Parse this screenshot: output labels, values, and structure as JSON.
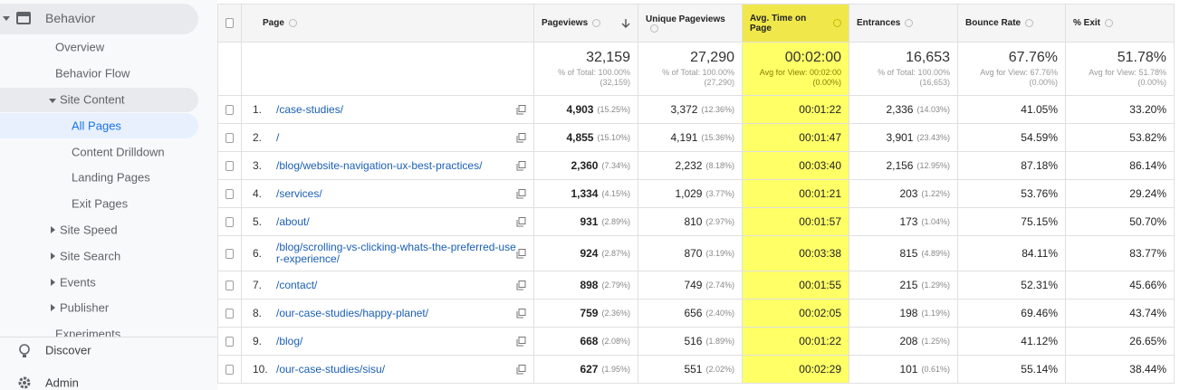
{
  "sidebar": {
    "items": [
      "Behavior",
      "Overview",
      "Behavior Flow",
      "Site Content",
      "All Pages",
      "Content Drilldown",
      "Landing Pages",
      "Exit Pages",
      "Site Speed",
      "Site Search",
      "Events",
      "Publisher",
      "Experiments"
    ],
    "discover": "Discover",
    "admin": "Admin"
  },
  "table": {
    "columns": [
      "Page",
      "Pageviews",
      "Unique Pageviews",
      "Avg. Time on Page",
      "Entrances",
      "Bounce Rate",
      "% Exit"
    ],
    "totals": [
      {
        "value": "32,159",
        "line1": "% of Total: 100.00%",
        "line2": "(32,159)"
      },
      {
        "value": "27,290",
        "line1": "% of Total: 100.00%",
        "line2": "(27,290)"
      },
      {
        "value": "00:02:00",
        "line1": "Avg for View: 00:02:00",
        "line2": "(0.00%)"
      },
      {
        "value": "16,653",
        "line1": "% of Total: 100.00%",
        "line2": "(16,653)"
      },
      {
        "value": "67.76%",
        "line1": "Avg for View: 67.76%",
        "line2": "(0.00%)"
      },
      {
        "value": "51.78%",
        "line1": "Avg for View: 51.78%",
        "line2": "(0.00%)"
      }
    ],
    "rows": [
      {
        "rank": "1.",
        "page": "/case-studies/",
        "cells": [
          [
            "4,903",
            "(15.25%)"
          ],
          [
            "3,372",
            "(12.36%)"
          ],
          [
            "00:01:22"
          ],
          [
            "2,336",
            "(14.03%)"
          ],
          [
            "41.05%"
          ],
          [
            "33.20%"
          ]
        ]
      },
      {
        "rank": "2.",
        "page": "/",
        "cells": [
          [
            "4,855",
            "(15.10%)"
          ],
          [
            "4,191",
            "(15.36%)"
          ],
          [
            "00:01:47"
          ],
          [
            "3,901",
            "(23.43%)"
          ],
          [
            "54.59%"
          ],
          [
            "53.82%"
          ]
        ]
      },
      {
        "rank": "3.",
        "page": "/blog/website-navigation-ux-best-practices/",
        "cells": [
          [
            "2,360",
            "(7.34%)"
          ],
          [
            "2,232",
            "(8.18%)"
          ],
          [
            "00:03:40"
          ],
          [
            "2,156",
            "(12.95%)"
          ],
          [
            "87.18%"
          ],
          [
            "86.14%"
          ]
        ]
      },
      {
        "rank": "4.",
        "page": "/services/",
        "cells": [
          [
            "1,334",
            "(4.15%)"
          ],
          [
            "1,029",
            "(3.77%)"
          ],
          [
            "00:01:21"
          ],
          [
            "203",
            "(1.22%)"
          ],
          [
            "53.76%"
          ],
          [
            "29.24%"
          ]
        ]
      },
      {
        "rank": "5.",
        "page": "/about/",
        "cells": [
          [
            "931",
            "(2.89%)"
          ],
          [
            "810",
            "(2.97%)"
          ],
          [
            "00:01:57"
          ],
          [
            "173",
            "(1.04%)"
          ],
          [
            "75.15%"
          ],
          [
            "50.70%"
          ]
        ]
      },
      {
        "rank": "6.",
        "page": "/blog/scrolling-vs-clicking-whats-the-preferred-user-experience/",
        "cells": [
          [
            "924",
            "(2.87%)"
          ],
          [
            "870",
            "(3.19%)"
          ],
          [
            "00:03:38"
          ],
          [
            "815",
            "(4.89%)"
          ],
          [
            "84.11%"
          ],
          [
            "83.77%"
          ]
        ]
      },
      {
        "rank": "7.",
        "page": "/contact/",
        "cells": [
          [
            "898",
            "(2.79%)"
          ],
          [
            "749",
            "(2.74%)"
          ],
          [
            "00:01:55"
          ],
          [
            "215",
            "(1.29%)"
          ],
          [
            "52.31%"
          ],
          [
            "45.66%"
          ]
        ]
      },
      {
        "rank": "8.",
        "page": "/our-case-studies/happy-planet/",
        "cells": [
          [
            "759",
            "(2.36%)"
          ],
          [
            "656",
            "(2.40%)"
          ],
          [
            "00:02:05"
          ],
          [
            "198",
            "(1.19%)"
          ],
          [
            "69.46%"
          ],
          [
            "43.74%"
          ]
        ]
      },
      {
        "rank": "9.",
        "page": "/blog/",
        "cells": [
          [
            "668",
            "(2.08%)"
          ],
          [
            "516",
            "(1.89%)"
          ],
          [
            "00:01:22"
          ],
          [
            "208",
            "(1.25%)"
          ],
          [
            "41.12%"
          ],
          [
            "26.65%"
          ]
        ]
      },
      {
        "rank": "10.",
        "page": "/our-case-studies/sisu/",
        "cells": [
          [
            "627",
            "(1.95%)"
          ],
          [
            "551",
            "(2.02%)"
          ],
          [
            "00:02:29"
          ],
          [
            "101",
            "(0.61%)"
          ],
          [
            "55.14%"
          ],
          [
            "38.44%"
          ]
        ]
      }
    ]
  }
}
